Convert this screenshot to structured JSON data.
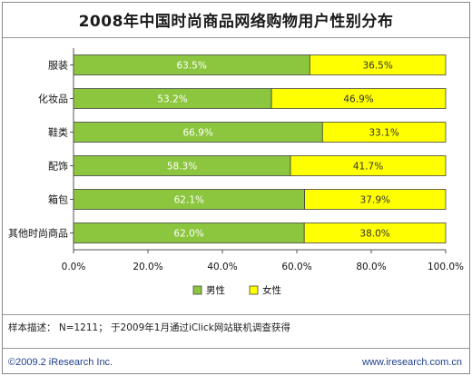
{
  "chart_data": {
    "type": "bar",
    "orientation": "horizontal",
    "stacked": true,
    "title": "2008年中国时尚商品网络购物用户性别分布",
    "categories": [
      "服装",
      "化妆品",
      "鞋类",
      "配饰",
      "箱包",
      "其他时尚商品"
    ],
    "series": [
      {
        "name": "男性",
        "values": [
          63.5,
          53.2,
          66.9,
          58.3,
          62.1,
          62.0
        ],
        "labels": [
          "63.5%",
          "53.2%",
          "66.9%",
          "58.3%",
          "62.1%",
          "62.0%"
        ],
        "color": "#8cc63f"
      },
      {
        "name": "女性",
        "values": [
          36.5,
          46.9,
          33.1,
          41.7,
          37.9,
          38.0
        ],
        "labels": [
          "36.5%",
          "46.9%",
          "33.1%",
          "41.7%",
          "37.9%",
          "38.0%"
        ],
        "color": "#ffff00"
      }
    ],
    "xlim": [
      0,
      100
    ],
    "xticks": [
      "0.0%",
      "20.0%",
      "40.0%",
      "60.0%",
      "80.0%",
      "100.0%"
    ],
    "legend_position": "bottom",
    "grid": false
  },
  "note": "样本描述： N=1211； 于2009年1月通过iClick网站联机调查获得",
  "footer": {
    "copyright": "©2009.2 iResearch Inc.",
    "website": "www.iresearch.com.cn"
  }
}
